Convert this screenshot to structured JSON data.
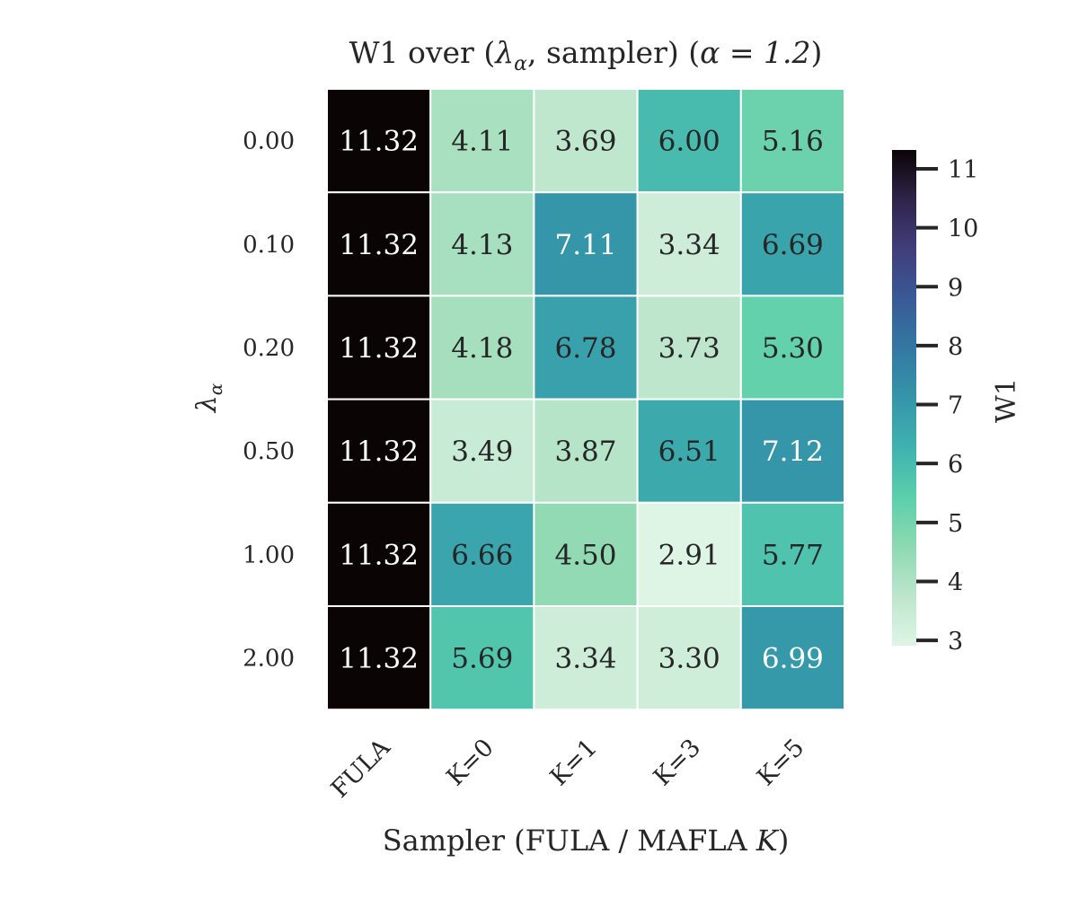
{
  "chart_data": {
    "type": "heatmap",
    "title": {
      "prefix": "W1 over (",
      "lambda_symbol": "λ",
      "lambda_sub": "α",
      "middle": ", sampler) (",
      "alpha_eq": "α = 1.2",
      "suffix": ")"
    },
    "xlabel": {
      "prefix": "Sampler (FULA / MAFLA ",
      "italic": "K",
      "suffix": ")"
    },
    "ylabel": {
      "symbol": "λ",
      "sub": "α"
    },
    "x_categories": [
      "FULA",
      "K=0",
      "K=1",
      "K=3",
      "K=5"
    ],
    "y_categories": [
      "0.00",
      "0.10",
      "0.20",
      "0.50",
      "1.00",
      "2.00"
    ],
    "values": [
      [
        11.32,
        4.11,
        3.69,
        6.0,
        5.16
      ],
      [
        11.32,
        4.13,
        7.11,
        3.34,
        6.69
      ],
      [
        11.32,
        4.18,
        6.78,
        3.73,
        5.3
      ],
      [
        11.32,
        3.49,
        3.87,
        6.51,
        7.12
      ],
      [
        11.32,
        6.66,
        4.5,
        2.91,
        5.77
      ],
      [
        11.32,
        5.69,
        3.34,
        3.3,
        6.99
      ]
    ],
    "cell_labels": [
      [
        "11.32",
        "4.11",
        "3.69",
        "6.00",
        "5.16"
      ],
      [
        "11.32",
        "4.13",
        "7.11",
        "3.34",
        "6.69"
      ],
      [
        "11.32",
        "4.18",
        "6.78",
        "3.73",
        "5.30"
      ],
      [
        "11.32",
        "3.49",
        "3.87",
        "6.51",
        "7.12"
      ],
      [
        "11.32",
        "6.66",
        "4.50",
        "2.91",
        "5.77"
      ],
      [
        "11.32",
        "5.69",
        "3.34",
        "3.30",
        "6.99"
      ]
    ],
    "colorbar": {
      "label": "W1",
      "vmin": 2.91,
      "vmax": 11.32,
      "ticks": [
        3,
        4,
        5,
        6,
        7,
        8,
        9,
        10,
        11
      ],
      "tick_labels": [
        "3",
        "4",
        "5",
        "6",
        "7",
        "8",
        "9",
        "10",
        "11"
      ]
    },
    "colormap": {
      "name": "mako_r",
      "stops": [
        [
          0.0,
          "#def5e5"
        ],
        [
          0.1,
          "#bde6cc"
        ],
        [
          0.2,
          "#8dd9b1"
        ],
        [
          0.3,
          "#5acfab"
        ],
        [
          0.4,
          "#3fb2af"
        ],
        [
          0.5,
          "#3595a9"
        ],
        [
          0.6,
          "#3478a2"
        ],
        [
          0.7,
          "#395a97"
        ],
        [
          0.8,
          "#413e7b"
        ],
        [
          0.9,
          "#2f2449"
        ],
        [
          1.0,
          "#0b0405"
        ]
      ]
    },
    "text_colors": {
      "dark": "#262626",
      "light": "#ffffff",
      "axis": "#262626"
    }
  }
}
